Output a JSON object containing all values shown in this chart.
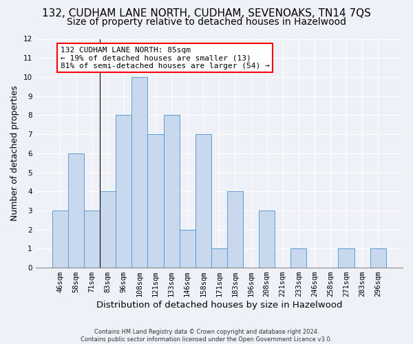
{
  "title_line1": "132, CUDHAM LANE NORTH, CUDHAM, SEVENOAKS, TN14 7QS",
  "title_line2": "Size of property relative to detached houses in Hazelwood",
  "xlabel": "Distribution of detached houses by size in Hazelwood",
  "ylabel": "Number of detached properties",
  "categories": [
    "46sqm",
    "58sqm",
    "71sqm",
    "83sqm",
    "96sqm",
    "108sqm",
    "121sqm",
    "133sqm",
    "146sqm",
    "158sqm",
    "171sqm",
    "183sqm",
    "196sqm",
    "208sqm",
    "221sqm",
    "233sqm",
    "246sqm",
    "258sqm",
    "271sqm",
    "283sqm",
    "296sqm"
  ],
  "values": [
    3,
    6,
    3,
    4,
    8,
    10,
    7,
    8,
    2,
    7,
    1,
    4,
    0,
    3,
    0,
    1,
    0,
    0,
    1,
    0,
    1
  ],
  "bar_color": "#c9d9ed",
  "bar_edge_color": "#5b9bd5",
  "annotation_text": "132 CUDHAM LANE NORTH: 85sqm\n← 19% of detached houses are smaller (13)\n81% of semi-detached houses are larger (54) →",
  "annotation_box_color": "white",
  "annotation_box_edge_color": "red",
  "vline_x": 2.5,
  "ylim": [
    0,
    12
  ],
  "yticks": [
    0,
    1,
    2,
    3,
    4,
    5,
    6,
    7,
    8,
    9,
    10,
    11,
    12
  ],
  "footer": "Contains HM Land Registry data © Crown copyright and database right 2024.\nContains public sector information licensed under the Open Government Licence v3.0.",
  "background_color": "#eef2f8",
  "grid_color": "#ffffff",
  "title1_fontsize": 11,
  "title2_fontsize": 10,
  "tick_fontsize": 7.5,
  "ylabel_fontsize": 9,
  "xlabel_fontsize": 9.5,
  "annotation_fontsize": 8,
  "footer_fontsize": 6
}
